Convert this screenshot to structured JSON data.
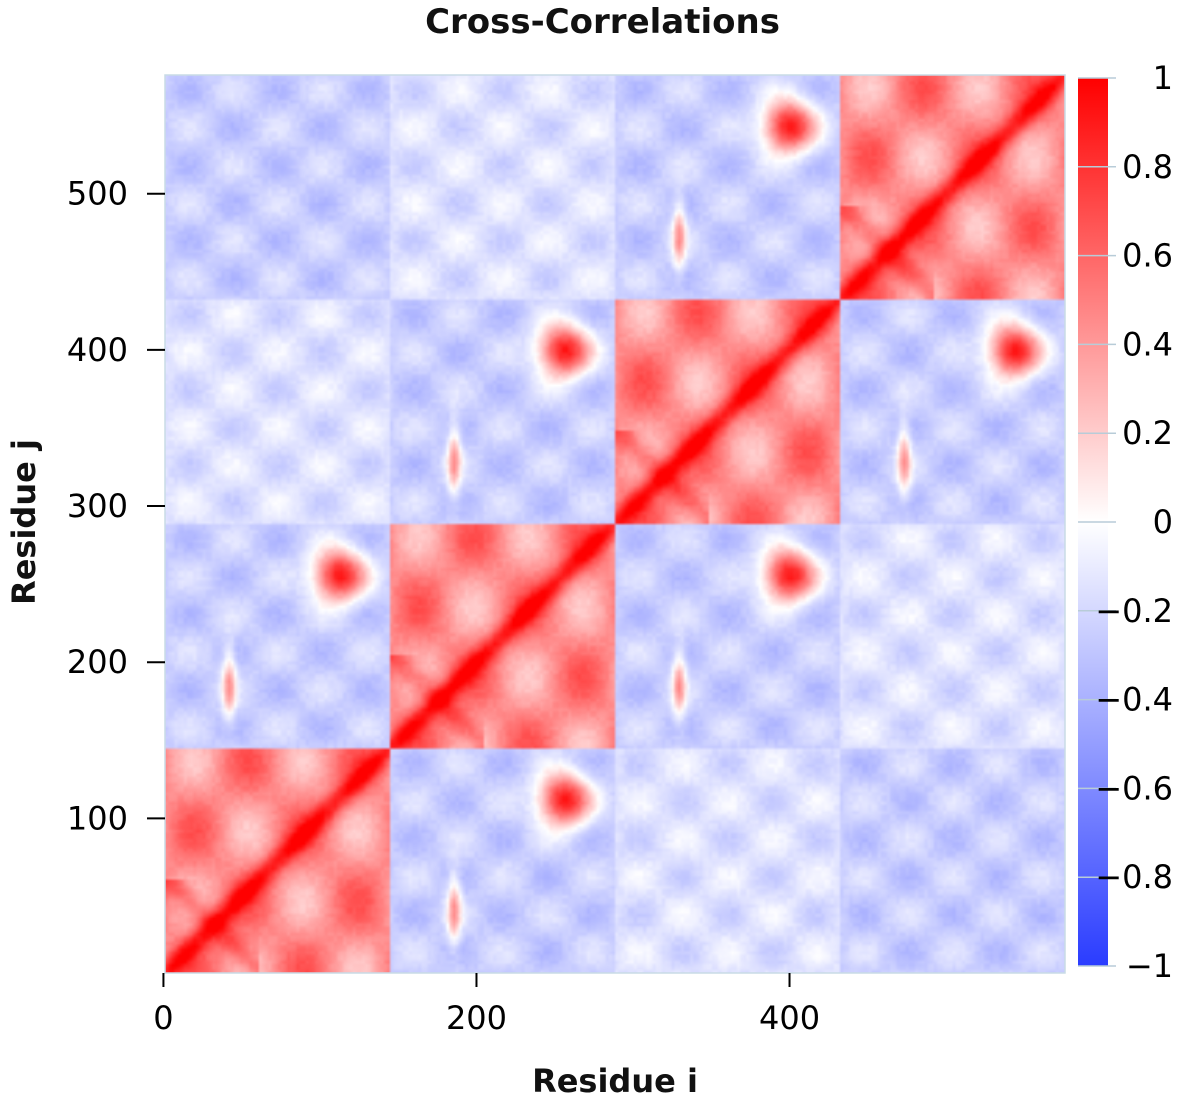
{
  "chart_data": {
    "type": "heatmap",
    "title": "Cross-Correlations",
    "xlabel": "Residue i",
    "ylabel": "Residue j",
    "n_residues": 576,
    "domains": [
      {
        "start": 1,
        "end": 144
      },
      {
        "start": 145,
        "end": 288
      },
      {
        "start": 289,
        "end": 432
      },
      {
        "start": 433,
        "end": 576
      }
    ],
    "xlim": [
      1,
      576
    ],
    "ylim": [
      1,
      576
    ],
    "xticks": [
      {
        "value": 0,
        "label": "0"
      },
      {
        "value": 200,
        "label": "200"
      },
      {
        "value": 400,
        "label": "400"
      }
    ],
    "yticks": [
      {
        "value": 100,
        "label": "100"
      },
      {
        "value": 200,
        "label": "200"
      },
      {
        "value": 300,
        "label": "300"
      },
      {
        "value": 400,
        "label": "400"
      },
      {
        "value": 500,
        "label": "500"
      }
    ],
    "colorbar": {
      "range": [
        -1,
        1
      ],
      "ticks": [
        {
          "value": 1,
          "label": "1"
        },
        {
          "value": 0.8,
          "label": "0.8"
        },
        {
          "value": 0.6,
          "label": "0.6"
        },
        {
          "value": 0.4,
          "label": "0.4"
        },
        {
          "value": 0.2,
          "label": "0.2"
        },
        {
          "value": 0,
          "label": "0"
        },
        {
          "value": -0.2,
          "label": "−0.2"
        },
        {
          "value": -0.4,
          "label": "−0.4"
        },
        {
          "value": -0.6,
          "label": "−0.6"
        },
        {
          "value": -0.8,
          "label": "−0.8"
        },
        {
          "value": -1,
          "label": "−1"
        }
      ],
      "colors": {
        "negative": "#2a3cff",
        "zero": "#ffffff",
        "positive": "#ff0000"
      }
    },
    "block_pattern": {
      "diagonal_blocks_mean": 0.6,
      "adjacent_offdiagonal_blocks_mean": -0.25,
      "corner_blocks_mean": -0.15,
      "hotspot_value": 0.9
    },
    "grid": false
  }
}
